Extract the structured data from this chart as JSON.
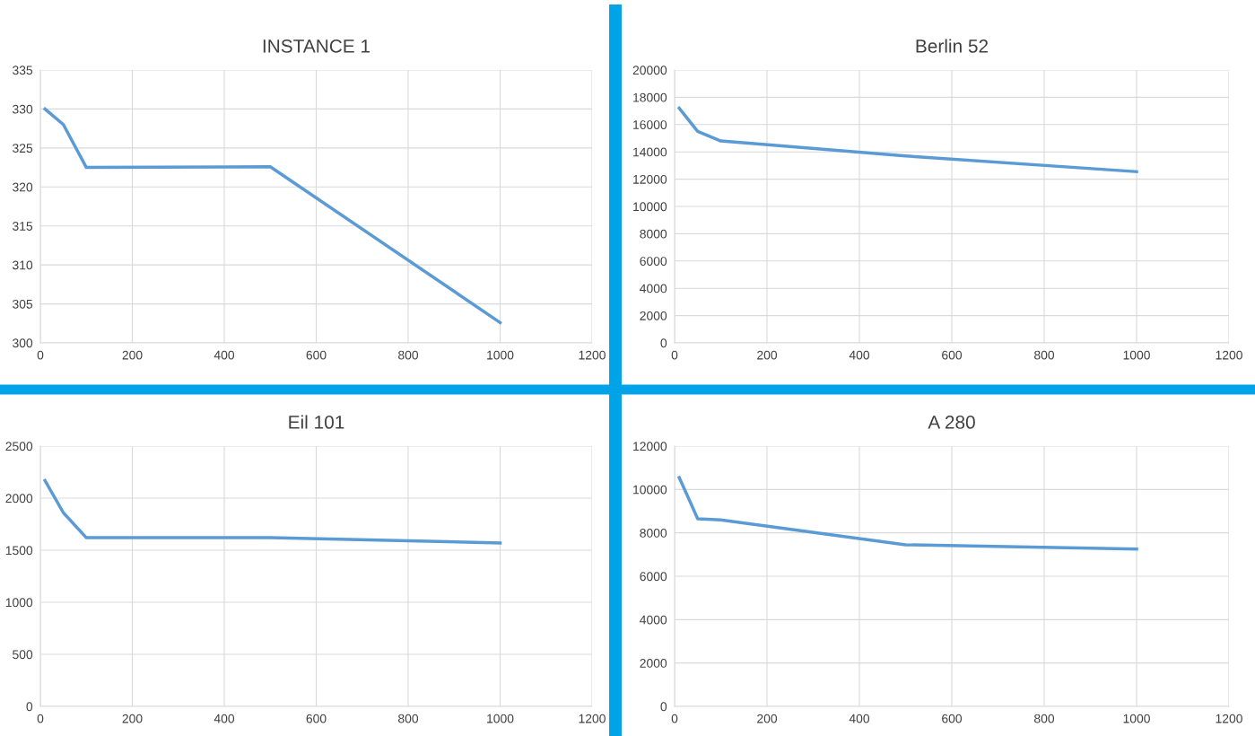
{
  "chart_data": [
    {
      "type": "line",
      "title": "INSTANCE 1",
      "x": [
        10,
        50,
        100,
        500,
        1000
      ],
      "series": [
        {
          "color": "#5b9bd5",
          "values": [
            330,
            328,
            322.5,
            322.6,
            302.6
          ]
        }
      ],
      "xlim": [
        0,
        1200
      ],
      "xticks": [
        0,
        200,
        400,
        600,
        800,
        1000,
        1200
      ],
      "ylim": [
        300,
        335
      ],
      "yticks": [
        300,
        305,
        310,
        315,
        320,
        325,
        330,
        335
      ],
      "grid": true,
      "marker": "none",
      "line_style": "solid"
    },
    {
      "type": "line",
      "title": "Berlin 52",
      "x": [
        10,
        50,
        100,
        500,
        1000
      ],
      "series": [
        {
          "color": "#5b9bd5",
          "values": [
            17200,
            15500,
            14800,
            13700,
            12550
          ]
        }
      ],
      "xlim": [
        0,
        1200
      ],
      "xticks": [
        0,
        200,
        400,
        600,
        800,
        1000,
        1200
      ],
      "ylim": [
        0,
        20000
      ],
      "yticks": [
        0,
        2000,
        4000,
        6000,
        8000,
        10000,
        12000,
        14000,
        16000,
        18000,
        20000
      ],
      "grid": true,
      "marker": "none",
      "line_style": "solid"
    },
    {
      "type": "line",
      "title": "Eil 101",
      "x": [
        10,
        50,
        100,
        500,
        1000
      ],
      "series": [
        {
          "color": "#5b9bd5",
          "values": [
            2170,
            1860,
            1620,
            1620,
            1570
          ]
        }
      ],
      "xlim": [
        0,
        1200
      ],
      "xticks": [
        0,
        200,
        400,
        600,
        800,
        1000,
        1200
      ],
      "ylim": [
        0,
        2500
      ],
      "yticks": [
        0,
        500,
        1000,
        1500,
        2000,
        2500
      ],
      "grid": true,
      "marker": "none",
      "line_style": "solid"
    },
    {
      "type": "line",
      "title": "A 280",
      "x": [
        10,
        50,
        100,
        500,
        1000
      ],
      "series": [
        {
          "color": "#5b9bd5",
          "values": [
            10550,
            8650,
            8600,
            7450,
            7250
          ]
        }
      ],
      "xlim": [
        0,
        1200
      ],
      "xticks": [
        0,
        200,
        400,
        600,
        800,
        1000,
        1200
      ],
      "ylim": [
        0,
        12000
      ],
      "yticks": [
        0,
        2000,
        4000,
        6000,
        8000,
        10000,
        12000
      ],
      "grid": true,
      "marker": "none",
      "line_style": "solid"
    }
  ]
}
